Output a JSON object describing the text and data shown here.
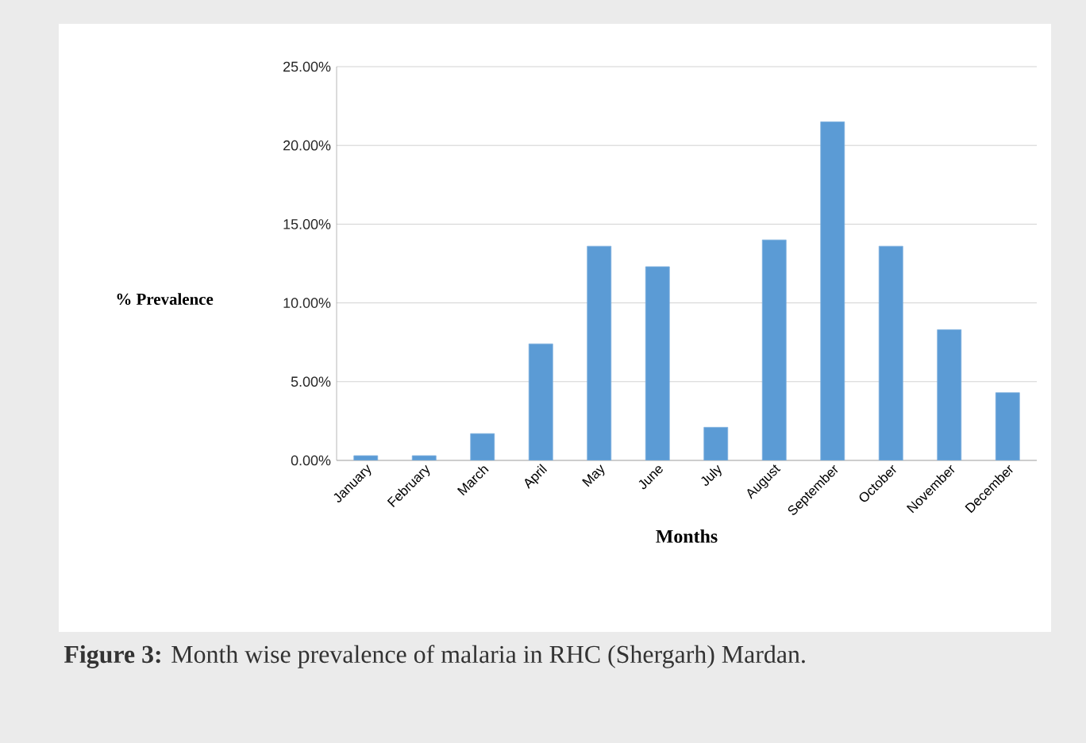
{
  "chart_data": {
    "type": "bar",
    "xlabel": "Months",
    "ylabel": "% Prevalence",
    "color": "#5b9bd5",
    "grid": "y",
    "categories": [
      "January",
      "February",
      "March",
      "April",
      "May",
      "June",
      "July",
      "August",
      "September",
      "October",
      "November",
      "December"
    ],
    "values": [
      0.3,
      0.3,
      1.7,
      7.4,
      13.6,
      12.3,
      2.1,
      14.0,
      21.5,
      13.6,
      8.3,
      4.3
    ],
    "ylim": [
      0,
      25
    ],
    "yticks": [
      {
        "value": 0,
        "label": "0.00%"
      },
      {
        "value": 5,
        "label": "5.00%"
      },
      {
        "value": 10,
        "label": "10.00%"
      },
      {
        "value": 15,
        "label": "15.00%"
      },
      {
        "value": 20,
        "label": "20.00%"
      },
      {
        "value": 25,
        "label": "25.00%"
      }
    ],
    "annotations": [
      "**Figure 3:** Month wise prevalence of malaria in RHC (Shergarh) Mardan."
    ]
  }
}
